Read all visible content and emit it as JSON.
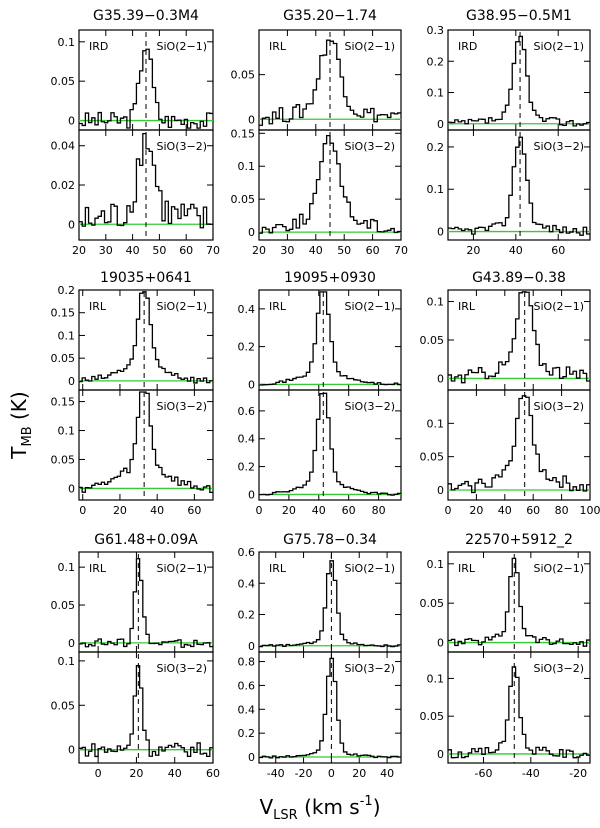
{
  "chart_data": {
    "type": "line",
    "xlabel": "V",
    "xlabel_sub": "LSR",
    "xlabel_units": "(km s",
    "xlabel_exp": "-1",
    "xlabel_close": ")",
    "ylabel": "T",
    "ylabel_sub": "MB",
    "ylabel_units": "(K)",
    "baseline_color": "#33cc33",
    "line_color": "#000000",
    "sources": [
      {
        "name": "G35.39−0.3M4",
        "type": "IRD",
        "vlsr": 45,
        "xlim": [
          20,
          70
        ],
        "xticks": [
          20,
          30,
          40,
          50,
          60,
          70
        ],
        "panels": [
          {
            "line": "SiO(2−1)",
            "ylim": [
              -0.012,
              0.115
            ],
            "yticks": [
              0,
              0.05,
              0.1
            ],
            "ytick_labels": [
              "0",
              "0.05",
              "0.1"
            ],
            "peak": 0.098,
            "width": 2.2,
            "wing": 0.0,
            "noise": 0.011
          },
          {
            "line": "SiO(3−2)",
            "ylim": [
              -0.008,
              0.048
            ],
            "yticks": [
              0,
              0.02,
              0.04
            ],
            "ytick_labels": [
              "0",
              "0.02",
              "0.04"
            ],
            "peak": 0.038,
            "width": 3.0,
            "wing": 0.006,
            "noise": 0.009
          }
        ]
      },
      {
        "name": "G35.20−1.74",
        "type": "IRL",
        "vlsr": 45,
        "xlim": [
          20,
          70
        ],
        "xticks": [
          20,
          30,
          40,
          50,
          60,
          70
        ],
        "panels": [
          {
            "line": "SiO(2−1)",
            "ylim": [
              -0.012,
              0.1
            ],
            "yticks": [
              0,
              0.05
            ],
            "ytick_labels": [
              "0",
              "0.05"
            ],
            "peak": 0.08,
            "width": 3.5,
            "wing": 0.01,
            "noise": 0.009
          },
          {
            "line": "SiO(3−2)",
            "ylim": [
              -0.012,
              0.155
            ],
            "yticks": [
              0,
              0.05,
              0.1,
              0.15
            ],
            "ytick_labels": [
              "0",
              "0.05",
              "0.1",
              "0.15"
            ],
            "peak": 0.12,
            "width": 3.5,
            "wing": 0.02,
            "noise": 0.01
          }
        ]
      },
      {
        "name": "G38.95−0.5M1",
        "type": "IRD",
        "vlsr": 42,
        "xlim": [
          8,
          75
        ],
        "xticks": [
          20,
          40,
          60
        ],
        "panels": [
          {
            "line": "SiO(2−1)",
            "ylim": [
              -0.02,
              0.3
            ],
            "yticks": [
              0,
              0.1,
              0.2,
              0.3
            ],
            "ytick_labels": [
              "0",
              "0.1",
              "0.2",
              "0.3"
            ],
            "peak": 0.26,
            "width": 3.0,
            "wing": 0.02,
            "noise": 0.012
          },
          {
            "line": "SiO(3−2)",
            "ylim": [
              -0.02,
              0.24
            ],
            "yticks": [
              0,
              0.1,
              0.2
            ],
            "ytick_labels": [
              "0",
              "0.1",
              "0.2"
            ],
            "peak": 0.21,
            "width": 3.0,
            "wing": 0.015,
            "noise": 0.01
          }
        ]
      },
      {
        "name": "19035+0641",
        "type": "IRL",
        "vlsr": 33,
        "xlim": [
          -2,
          70
        ],
        "xticks": [
          0,
          20,
          40,
          60
        ],
        "panels": [
          {
            "line": "SiO(2−1)",
            "ylim": [
              -0.02,
              0.2
            ],
            "yticks": [
              0,
              0.05,
              0.1,
              0.15,
              0.2
            ],
            "ytick_labels": [
              "0",
              "0.05",
              "0.1",
              "0.15",
              "0.2"
            ],
            "peak": 0.17,
            "width": 3.0,
            "wing": 0.04,
            "noise": 0.008
          },
          {
            "line": "SiO(3−2)",
            "ylim": [
              -0.02,
              0.17
            ],
            "yticks": [
              0,
              0.05,
              0.1,
              0.15
            ],
            "ytick_labels": [
              "0",
              "0.05",
              "0.1",
              "0.15"
            ],
            "peak": 0.15,
            "width": 3.0,
            "wing": 0.04,
            "noise": 0.008
          }
        ]
      },
      {
        "name": "19095+0930",
        "type": "IRL",
        "vlsr": 43,
        "xlim": [
          0,
          95
        ],
        "xticks": [
          0,
          20,
          40,
          60,
          80
        ],
        "panels": [
          {
            "line": "SiO(2−1)",
            "ylim": [
              -0.03,
              0.5
            ],
            "yticks": [
              0,
              0.2,
              0.4
            ],
            "ytick_labels": [
              "0",
              "0.2",
              "0.4"
            ],
            "peak": 0.45,
            "width": 4.0,
            "wing": 0.06,
            "noise": 0.006
          },
          {
            "line": "SiO(3−2)",
            "ylim": [
              -0.04,
              0.75
            ],
            "yticks": [
              0,
              0.2,
              0.4,
              0.6
            ],
            "ytick_labels": [
              "0",
              "0.2",
              "0.4",
              "0.6"
            ],
            "peak": 0.67,
            "width": 4.0,
            "wing": 0.08,
            "noise": 0.008
          }
        ]
      },
      {
        "name": "G43.89−0.38",
        "type": "IRL",
        "vlsr": 54,
        "xlim": [
          0,
          100
        ],
        "xticks": [
          0,
          20,
          40,
          60,
          80,
          100
        ],
        "panels": [
          {
            "line": "SiO(2−1)",
            "ylim": [
              -0.015,
              0.115
            ],
            "yticks": [
              0,
              0.05,
              0.1
            ],
            "ytick_labels": [
              "0",
              "0.05",
              "0.1"
            ],
            "peak": 0.1,
            "width": 5.0,
            "wing": 0.02,
            "noise": 0.009
          },
          {
            "line": "SiO(3−2)",
            "ylim": [
              -0.015,
              0.15
            ],
            "yticks": [
              0,
              0.05,
              0.1
            ],
            "ytick_labels": [
              "0",
              "0.05",
              "0.1"
            ],
            "peak": 0.12,
            "width": 5.0,
            "wing": 0.03,
            "noise": 0.01
          }
        ]
      },
      {
        "name": "G61.48+0.09A",
        "type": "IRL",
        "vlsr": 21,
        "xlim": [
          -10,
          60
        ],
        "xticks": [
          0,
          20,
          40,
          60
        ],
        "panels": [
          {
            "line": "SiO(2−1)",
            "ylim": [
              -0.012,
              0.12
            ],
            "yticks": [
              0,
              0.05,
              0.1
            ],
            "ytick_labels": [
              "0",
              "0.05",
              "0.1"
            ],
            "peak": 0.11,
            "width": 2.0,
            "wing": 0.0,
            "noise": 0.006
          },
          {
            "line": "SiO(3−2)",
            "ylim": [
              -0.015,
              0.11
            ],
            "yticks": [
              0,
              0.05,
              0.1
            ],
            "ytick_labels": [
              "0",
              "0.05",
              "0.1"
            ],
            "peak": 0.095,
            "width": 2.0,
            "wing": 0.0,
            "noise": 0.008
          }
        ]
      },
      {
        "name": "G75.78−0.34",
        "type": "IRL",
        "vlsr": 0,
        "xlim": [
          -52,
          50
        ],
        "xticks": [
          -40,
          -20,
          0,
          20,
          40
        ],
        "panels": [
          {
            "line": "SiO(2−1)",
            "ylim": [
              -0.04,
              0.6
            ],
            "yticks": [
              0,
              0.2,
              0.4,
              0.6
            ],
            "ytick_labels": [
              "0",
              "0.2",
              "0.4",
              "0.6"
            ],
            "peak": 0.52,
            "width": 3.5,
            "wing": 0.03,
            "noise": 0.006
          },
          {
            "line": "SiO(3−2)",
            "ylim": [
              -0.05,
              0.88
            ],
            "yticks": [
              0,
              0.2,
              0.4,
              0.6,
              0.8
            ],
            "ytick_labels": [
              "0",
              "0.2",
              "0.4",
              "0.6",
              "0.8"
            ],
            "peak": 0.78,
            "width": 3.5,
            "wing": 0.04,
            "noise": 0.008
          }
        ]
      },
      {
        "name": "22570+5912_2",
        "type": "IRL",
        "vlsr": -47,
        "xlim": [
          -75,
          -15
        ],
        "xticks": [
          -60,
          -40,
          -20
        ],
        "panels": [
          {
            "line": "SiO(2−1)",
            "ylim": [
              -0.012,
              0.115
            ],
            "yticks": [
              0,
              0.05,
              0.1
            ],
            "ytick_labels": [
              "0",
              "0.05",
              "0.1"
            ],
            "peak": 0.1,
            "width": 2.0,
            "wing": 0.01,
            "noise": 0.005
          },
          {
            "line": "SiO(3−2)",
            "ylim": [
              -0.012,
              0.135
            ],
            "yticks": [
              0,
              0.05,
              0.1
            ],
            "ytick_labels": [
              "0",
              "0.05",
              "0.1"
            ],
            "peak": 0.11,
            "width": 2.0,
            "wing": 0.01,
            "noise": 0.006
          }
        ]
      }
    ]
  }
}
